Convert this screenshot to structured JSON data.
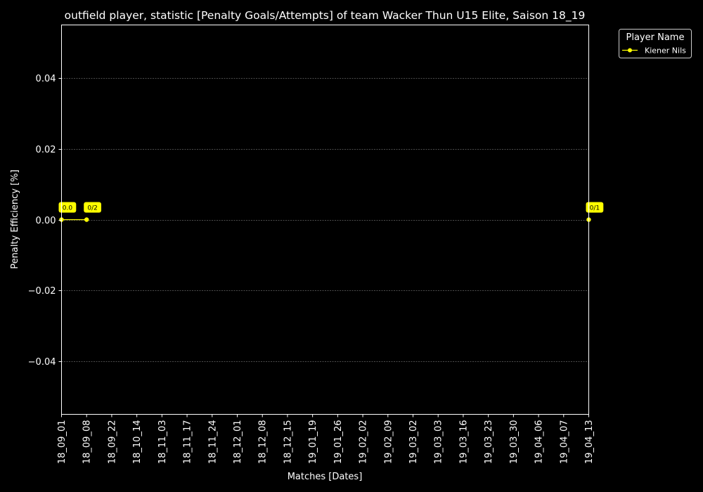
{
  "chart_data": {
    "type": "line",
    "title": "outfield player, statistic [Penalty Goals/Attempts] of team Wacker Thun U15 Elite, Saison 18_19",
    "xlabel": "Matches [Dates]",
    "ylabel": "Penalty Efficiency [%]",
    "categories": [
      "18_09_01",
      "18_09_08",
      "18_09_22",
      "18_10_14",
      "18_11_03",
      "18_11_17",
      "18_11_24",
      "18_12_01",
      "18_12_08",
      "18_12_15",
      "19_01_19",
      "19_01_26",
      "19_02_02",
      "19_02_09",
      "19_03_02",
      "19_03_03",
      "19_03_16",
      "19_03_23",
      "19_03_30",
      "19_04_06",
      "19_04_07",
      "19_04_13"
    ],
    "ylim": [
      -0.055,
      0.055
    ],
    "yticks": [
      "0.04",
      "0.02",
      "0.00",
      "−0.02",
      "−0.04"
    ],
    "ytick_values": [
      0.04,
      0.02,
      0.0,
      -0.02,
      -0.04
    ],
    "grid": true,
    "legend": {
      "title": "Player Name",
      "position": "outside-top-right"
    },
    "series": [
      {
        "name": "Kiener Nils",
        "color": "#ffff00",
        "segments": [
          [
            {
              "x": "18_09_01",
              "y": 0.0,
              "label": "0.0"
            },
            {
              "x": "18_09_08",
              "y": 0.0,
              "label": "0/2"
            }
          ],
          [
            {
              "x": "19_04_13",
              "y": 0.0,
              "label": "0/1"
            }
          ]
        ]
      }
    ],
    "colors": {
      "background": "#000000",
      "foreground": "#ffffff",
      "grid": "#666666",
      "series": "#ffff00"
    }
  }
}
